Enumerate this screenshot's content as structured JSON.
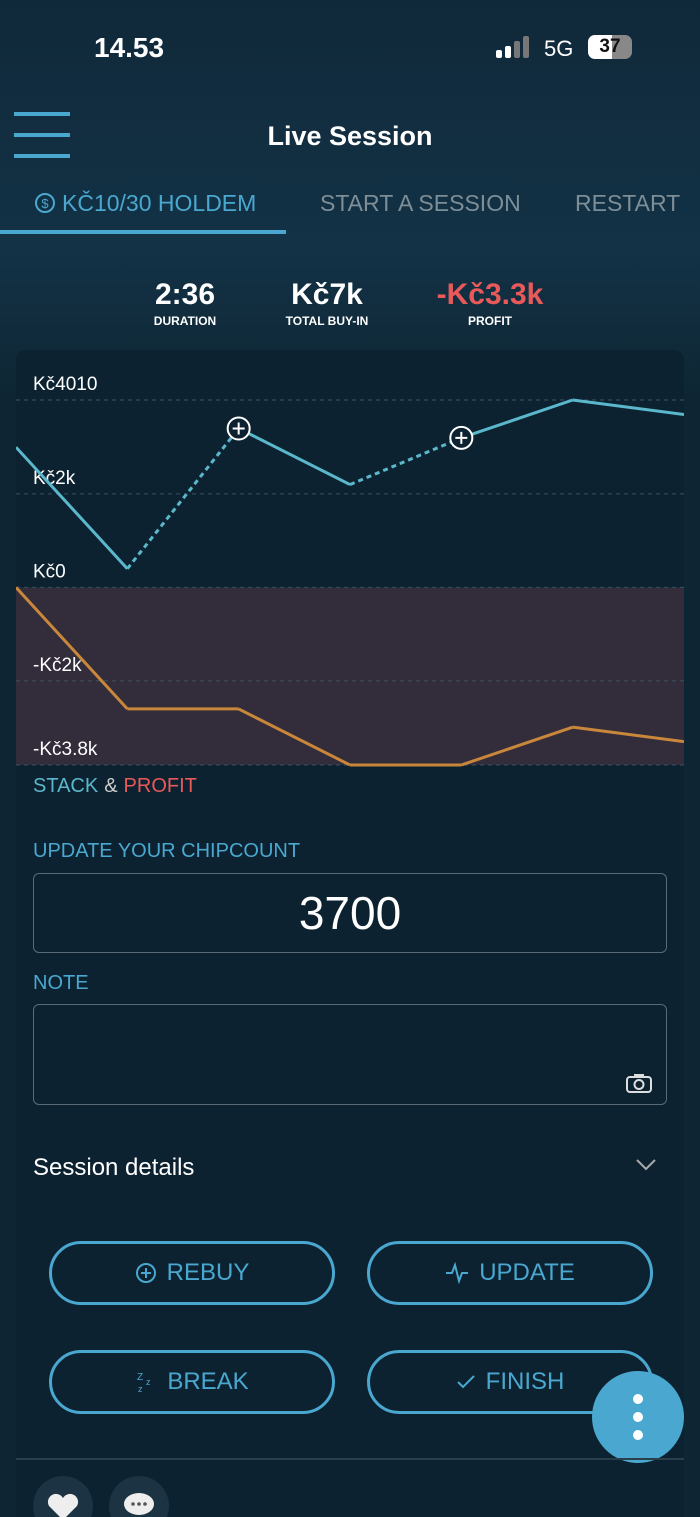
{
  "status_bar": {
    "time": "14.53",
    "network": "5G",
    "battery": "37"
  },
  "header": {
    "title": "Live Session"
  },
  "tabs": [
    "KČ10/30 HOLDEM",
    "START A SESSION",
    "RESTART"
  ],
  "stats": [
    {
      "value": "2:36",
      "label": "DURATION"
    },
    {
      "value": "Kč7k",
      "label": "TOTAL BUY-IN"
    },
    {
      "value": "-Kč3.3k",
      "label": "PROFIT"
    }
  ],
  "chart_data": {
    "type": "line",
    "categories": [
      null,
      null,
      null,
      null,
      null,
      null,
      null
    ],
    "series": [
      {
        "name": "STACK",
        "color": "#5bb8cc",
        "values": [
          3000,
          400,
          3400,
          2200,
          3200,
          4010,
          3700
        ]
      },
      {
        "name": "PROFIT",
        "color": "#c8873a",
        "values": [
          0,
          -2600,
          -2600,
          -3800,
          -3800,
          -2990,
          -3300
        ]
      }
    ],
    "legend_joiner": "&",
    "rebuy_points": [
      2,
      4
    ],
    "ylim": [
      -3800,
      4010
    ],
    "yticks": [
      {
        "value": 4010,
        "label": "Kč4010"
      },
      {
        "value": 2000,
        "label": "Kč2k"
      },
      {
        "value": 0,
        "label": "Kč0"
      },
      {
        "value": -2000,
        "label": "-Kč2k"
      },
      {
        "value": -3800,
        "label": "-Kč3.8k"
      }
    ],
    "grid": true
  },
  "chipcount": {
    "label": "UPDATE YOUR CHIPCOUNT",
    "value": "3700"
  },
  "note": {
    "label": "NOTE"
  },
  "session_details": "Session details",
  "buttons": [
    "REBUY",
    "UPDATE",
    "BREAK",
    "FINISH"
  ]
}
